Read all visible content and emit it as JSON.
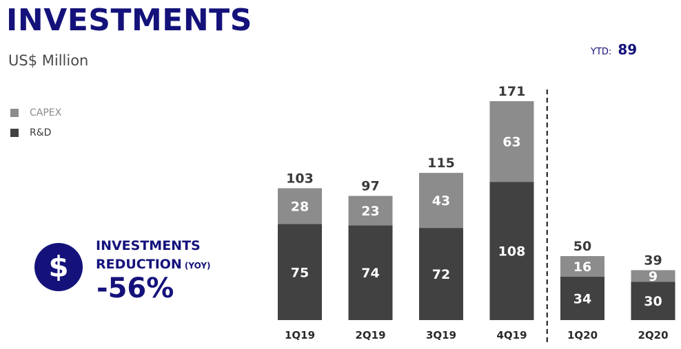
{
  "header": {
    "title": "INVESTMENTS",
    "subtitle": "US$ Million"
  },
  "ytd": {
    "label": "YTD:",
    "value": "89"
  },
  "kpi": {
    "icon": "dollar-icon",
    "icon_glyph": "$",
    "line1": "INVESTMENTS",
    "line2": "REDUCTION",
    "line2_small": "(YOY)",
    "value": "-56%"
  },
  "colors": {
    "capex": "#8c8c8c",
    "rd": "#414141",
    "accent": "#14127a"
  },
  "chart_data": {
    "type": "bar",
    "stacked": true,
    "categories": [
      "1Q19",
      "2Q19",
      "3Q19",
      "4Q19",
      "1Q20",
      "2Q20"
    ],
    "series": [
      {
        "name": "R&D",
        "values": [
          75,
          74,
          72,
          108,
          34,
          30
        ]
      },
      {
        "name": "CAPEX",
        "values": [
          28,
          23,
          43,
          63,
          16,
          9
        ]
      }
    ],
    "totals": [
      103,
      97,
      115,
      171,
      50,
      39
    ],
    "legend": [
      {
        "name": "CAPEX"
      },
      {
        "name": "R&D"
      }
    ],
    "legend_position": "top-left",
    "divider_after": "4Q19",
    "ylim": [
      0,
      171
    ],
    "grid": false
  }
}
